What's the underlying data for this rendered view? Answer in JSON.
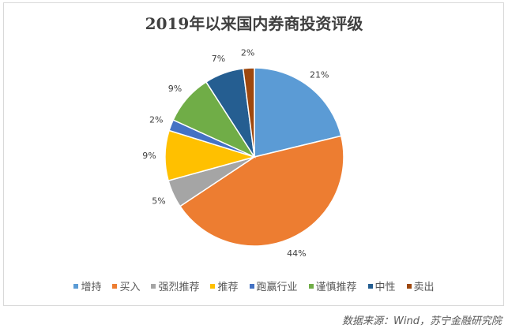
{
  "chart_data": {
    "type": "pie",
    "title": "2019年以来国内券商投资评级",
    "categories": [
      "增持",
      "买入",
      "强烈推荐",
      "推荐",
      "跑赢行业",
      "谨慎推荐",
      "中性",
      "卖出"
    ],
    "values": [
      21,
      44,
      5,
      9,
      2,
      9,
      7,
      2
    ],
    "data_labels": [
      "21%",
      "44%",
      "5%",
      "9%",
      "2%",
      "9%",
      "7%",
      "2%"
    ],
    "colors": [
      "#5B9BD5",
      "#ED7D31",
      "#A5A5A5",
      "#FFC000",
      "#4472C4",
      "#70AD47",
      "#255E91",
      "#9E480E"
    ],
    "legend": "bottom",
    "start_angle": "top, clockwise"
  },
  "source": "数据来源：Wind，苏宁金融研究院"
}
